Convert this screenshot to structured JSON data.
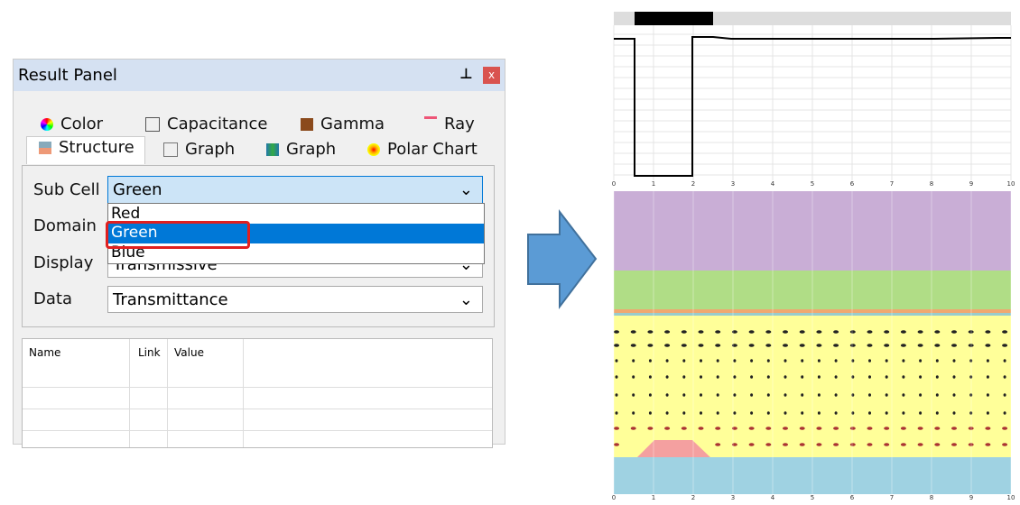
{
  "panel": {
    "title": "Result Panel",
    "tabs_row1": [
      "Color",
      "Capacitance",
      "Gamma",
      "Ray"
    ],
    "tabs_row2": [
      "Structure",
      "Graph",
      "Graph",
      "Polar Chart"
    ],
    "fields": [
      {
        "label": "Sub Cell",
        "value": "Green"
      },
      {
        "label": "Domain",
        "value": ""
      },
      {
        "label": "Display",
        "value": "Transmissive"
      },
      {
        "label": "Data",
        "value": "Transmittance"
      }
    ],
    "dropdown_options": [
      "Red",
      "Green",
      "Blue"
    ],
    "table_headers": [
      "Name",
      "Link",
      "Value"
    ]
  },
  "graph": {
    "xticks": [
      "0",
      "1",
      "2",
      "3",
      "4",
      "5",
      "6",
      "7",
      "8",
      "9",
      "10"
    ]
  },
  "structure": {
    "xticks": [
      "0",
      "1",
      "2",
      "3",
      "4",
      "5",
      "6",
      "7",
      "8",
      "9",
      "10"
    ]
  }
}
